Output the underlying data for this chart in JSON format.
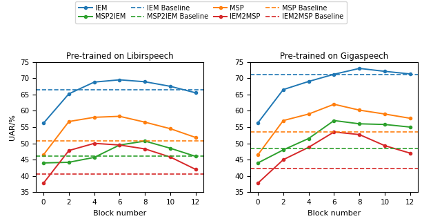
{
  "x": [
    0,
    2,
    4,
    6,
    8,
    10,
    12
  ],
  "libirspeech": {
    "IEM": [
      56.2,
      65.2,
      68.8,
      69.5,
      68.9,
      67.5,
      65.5
    ],
    "MSP": [
      46.5,
      56.7,
      58.0,
      58.3,
      56.5,
      54.5,
      51.8
    ],
    "MSP2IEM": [
      44.0,
      44.2,
      45.7,
      49.5,
      50.7,
      48.5,
      46.0
    ],
    "IEM2MSP": [
      37.8,
      47.8,
      50.0,
      49.5,
      48.3,
      45.8,
      42.0
    ],
    "IEM_baseline": 66.4,
    "MSP_baseline": 50.7,
    "MSP2IEM_baseline": 46.0,
    "IEM2MSP_baseline": 40.5
  },
  "gigaspeech": {
    "IEM": [
      56.3,
      66.5,
      69.0,
      71.2,
      73.0,
      72.1,
      71.3
    ],
    "MSP": [
      46.5,
      57.0,
      59.0,
      62.0,
      60.2,
      59.0,
      57.7
    ],
    "MSP2IEM": [
      44.0,
      48.0,
      51.5,
      57.0,
      56.0,
      55.8,
      55.0
    ],
    "IEM2MSP": [
      37.8,
      45.0,
      48.8,
      53.5,
      52.7,
      49.3,
      47.0
    ],
    "IEM_baseline": 71.2,
    "MSP_baseline": 53.5,
    "MSP2IEM_baseline": 48.5,
    "IEM2MSP_baseline": 42.3
  },
  "colors": {
    "IEM": "#1f77b4",
    "MSP": "#ff7f0e",
    "MSP2IEM": "#2ca02c",
    "IEM2MSP": "#d62728"
  },
  "title_left": "Pre-trained on Libirspeech",
  "title_right": "Pre-trained on Gigaspeech",
  "xlabel": "Block number",
  "ylabel": "UAR/%",
  "ylim": [
    35,
    75
  ],
  "yticks": [
    35,
    40,
    45,
    50,
    55,
    60,
    65,
    70,
    75
  ],
  "legend_row1": [
    "IEM",
    "MSP2IEM",
    "IEM Baseline",
    "MSP2IEM Baseline"
  ],
  "legend_row2": [
    "MSP",
    "IEM2MSP",
    "MSP Baseline",
    "IEM2MSP Baseline"
  ]
}
